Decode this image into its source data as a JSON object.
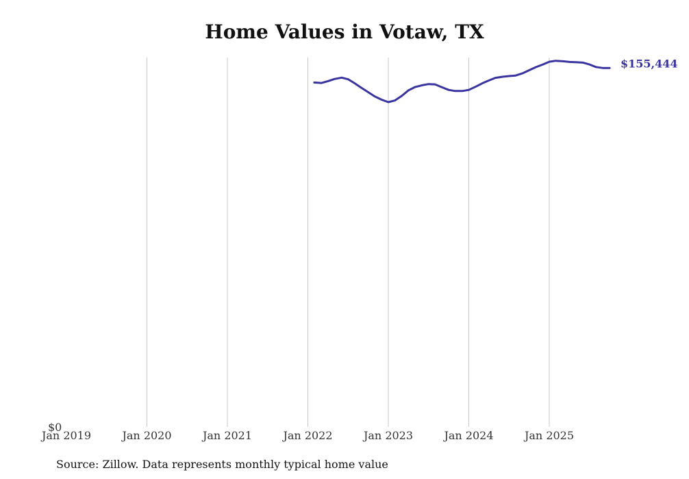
{
  "chart_data": {
    "type": "line",
    "title": "Home Values in Votaw, TX",
    "source": "Source: Zillow. Data represents monthly typical home value",
    "xlabel": "",
    "ylabel": "",
    "x_ticks": [
      "Jan 2019",
      "Jan 2020",
      "Jan 2021",
      "Jan 2022",
      "Jan 2023",
      "Jan 2024",
      "Jan 2025"
    ],
    "y_ticks": [
      "$0"
    ],
    "ylim": [
      0,
      160000
    ],
    "grid": "vertical",
    "line_color": "#3a34a1",
    "end_label": "$155,444",
    "series": [
      {
        "name": "Typical home value",
        "x": [
          2022.08,
          2022.17,
          2022.25,
          2022.33,
          2022.42,
          2022.5,
          2022.58,
          2022.67,
          2022.75,
          2022.83,
          2022.92,
          2023.0,
          2023.08,
          2023.17,
          2023.25,
          2023.33,
          2023.42,
          2023.5,
          2023.58,
          2023.67,
          2023.75,
          2023.83,
          2023.92,
          2024.0,
          2024.08,
          2024.17,
          2024.25,
          2024.33,
          2024.42,
          2024.5,
          2024.58,
          2024.67,
          2024.75,
          2024.83,
          2024.92,
          2025.0,
          2025.08,
          2025.17,
          2025.25,
          2025.33,
          2025.42,
          2025.5,
          2025.58,
          2025.67,
          2025.75
        ],
        "values": [
          149200,
          149000,
          149800,
          150700,
          151300,
          150600,
          148900,
          146800,
          145000,
          143200,
          141700,
          140700,
          141400,
          143500,
          145800,
          147200,
          148000,
          148500,
          148400,
          147100,
          146000,
          145500,
          145500,
          146000,
          147300,
          148900,
          150100,
          151200,
          151700,
          152000,
          152200,
          153200,
          154500,
          155800,
          157000,
          158200,
          158600,
          158400,
          158100,
          158000,
          157800,
          157000,
          155900,
          155444,
          155444
        ]
      }
    ]
  }
}
